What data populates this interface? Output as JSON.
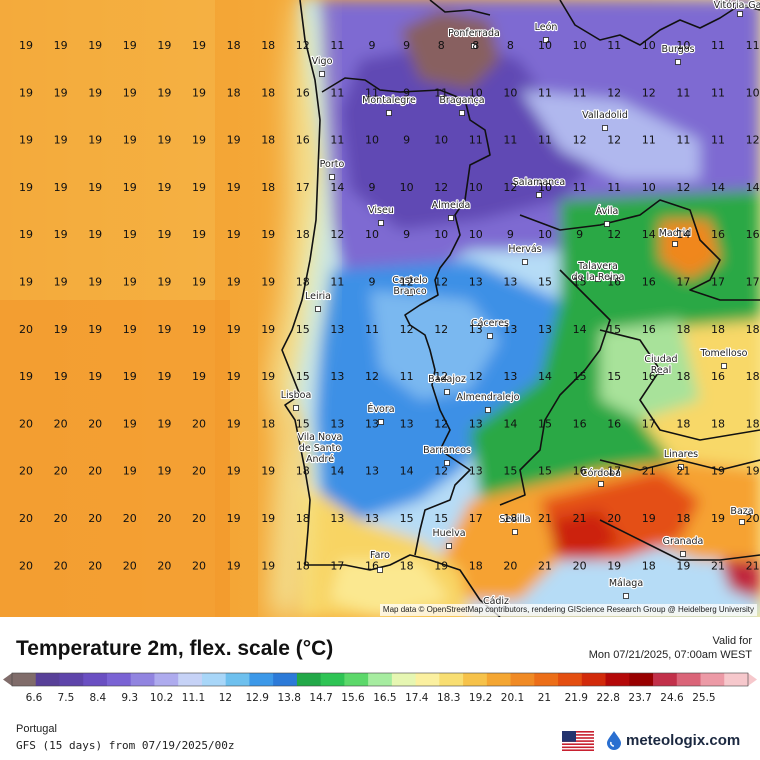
{
  "map": {
    "attribution": "Map data © OpenStreetMap contributors, rendering GIScience Research Group @ Heidelberg University",
    "grid_columns": 22,
    "grid_values": [
      [
        19,
        19,
        19,
        19,
        19,
        19,
        18,
        18,
        12,
        11,
        9,
        9,
        8,
        8,
        8,
        10,
        10,
        11,
        10,
        10,
        11,
        11
      ],
      [
        19,
        19,
        19,
        19,
        19,
        19,
        18,
        18,
        16,
        11,
        11,
        9,
        11,
        10,
        10,
        11,
        11,
        12,
        12,
        11,
        11,
        10
      ],
      [
        19,
        19,
        19,
        19,
        19,
        19,
        19,
        18,
        16,
        11,
        10,
        9,
        10,
        11,
        11,
        11,
        12,
        12,
        11,
        11,
        11,
        12
      ],
      [
        19,
        19,
        19,
        19,
        19,
        19,
        19,
        18,
        17,
        14,
        9,
        10,
        12,
        10,
        12,
        10,
        11,
        11,
        10,
        12,
        14,
        14
      ],
      [
        19,
        19,
        19,
        19,
        19,
        19,
        19,
        19,
        18,
        12,
        10,
        9,
        10,
        10,
        9,
        10,
        9,
        12,
        14,
        14,
        16,
        16
      ],
      [
        19,
        19,
        19,
        19,
        19,
        19,
        19,
        19,
        18,
        11,
        9,
        12,
        12,
        13,
        13,
        15,
        15,
        16,
        16,
        17,
        17,
        17
      ],
      [
        20,
        19,
        19,
        19,
        19,
        19,
        19,
        19,
        15,
        13,
        11,
        12,
        12,
        13,
        13,
        13,
        14,
        15,
        16,
        18,
        18,
        18
      ],
      [
        19,
        19,
        19,
        19,
        19,
        19,
        19,
        19,
        15,
        13,
        12,
        11,
        12,
        12,
        13,
        14,
        15,
        15,
        16,
        18,
        16,
        18
      ],
      [
        20,
        20,
        20,
        19,
        19,
        20,
        19,
        18,
        15,
        13,
        13,
        13,
        12,
        13,
        14,
        15,
        16,
        16,
        17,
        18,
        18,
        18
      ],
      [
        20,
        20,
        20,
        19,
        19,
        20,
        19,
        19,
        18,
        14,
        13,
        14,
        12,
        13,
        15,
        15,
        16,
        17,
        21,
        21,
        19,
        19
      ],
      [
        20,
        20,
        20,
        20,
        20,
        20,
        19,
        19,
        18,
        13,
        13,
        15,
        15,
        17,
        18,
        21,
        21,
        20,
        19,
        18,
        19,
        20
      ],
      [
        20,
        20,
        20,
        20,
        20,
        20,
        19,
        19,
        18,
        17,
        16,
        18,
        19,
        18,
        20,
        21,
        20,
        19,
        18,
        19,
        21,
        21
      ]
    ],
    "cities": [
      {
        "name": "Vitória-Gas"
      },
      {
        "name": "Ponferrada"
      },
      {
        "name": "León"
      },
      {
        "name": "Burgos"
      },
      {
        "name": "Vigo"
      },
      {
        "name": "Montalegre"
      },
      {
        "name": "Bragança"
      },
      {
        "name": "Valladolid"
      },
      {
        "name": "Porto"
      },
      {
        "name": "Salamanca"
      },
      {
        "name": "Viseu"
      },
      {
        "name": "Almeida"
      },
      {
        "name": "Ávila"
      },
      {
        "name": "Madrid"
      },
      {
        "name": "Hervás"
      },
      {
        "name": "Talavera"
      },
      {
        "name": "de la Reina"
      },
      {
        "name": "Castelo"
      },
      {
        "name": "Branco"
      },
      {
        "name": "Leiria"
      },
      {
        "name": "Cáceres"
      },
      {
        "name": "Ciudad"
      },
      {
        "name": "Real"
      },
      {
        "name": "Tomelloso"
      },
      {
        "name": "Lisboa"
      },
      {
        "name": "Badajoz"
      },
      {
        "name": "Almendralejo"
      },
      {
        "name": "Évora"
      },
      {
        "name": "Vila Nova"
      },
      {
        "name": "de Santo"
      },
      {
        "name": "André"
      },
      {
        "name": "Barrancos"
      },
      {
        "name": "Linares"
      },
      {
        "name": "Córdoba"
      },
      {
        "name": "Baza"
      },
      {
        "name": "Sevilla"
      },
      {
        "name": "Huelva"
      },
      {
        "name": "Granada"
      },
      {
        "name": "Faro"
      },
      {
        "name": "Málaga"
      },
      {
        "name": "Cádiz"
      }
    ]
  },
  "footer": {
    "title": "Temperature 2m, flex. scale (°C)",
    "valid_label": "Valid for",
    "valid_date": "Mon 07/21/2025, 07:00am WEST",
    "region": "Portugal",
    "model": "GFS (15 days) from 07/19/2025/00z",
    "logo_text": "meteologix.com"
  },
  "legend": {
    "labels": [
      "6.6",
      "7.5",
      "8.4",
      "9.3",
      "10.2",
      "11.1",
      "12",
      "12.9",
      "13.8",
      "14.7",
      "15.6",
      "16.5",
      "17.4",
      "18.3",
      "19.2",
      "20.1",
      "21",
      "21.9",
      "22.8",
      "23.7",
      "24.6",
      "25.5"
    ],
    "colors": [
      "#806c6a",
      "#584098",
      "#5e44aa",
      "#6a4fc2",
      "#7a63d4",
      "#9184e0",
      "#aeabee",
      "#c6d2f6",
      "#a8d6f8",
      "#6ec0ee",
      "#3c98e8",
      "#2c7ad8",
      "#22a848",
      "#2ec454",
      "#5cd86a",
      "#a6eca0",
      "#e6f6b2",
      "#fbf0a0",
      "#f8de72",
      "#f6c24a",
      "#f4a632",
      "#f08a24",
      "#ec6e18",
      "#e44e10",
      "#d22a0a",
      "#b40808",
      "#980000",
      "#c2304a",
      "#da6478",
      "#ec9aa6",
      "#f6c8cc"
    ]
  },
  "colors": {
    "sea_warm": "#f39a2a",
    "sea_mild": "#f7c254",
    "coast_yellow": "#fbf09a",
    "cold_purple": "#5c44a8",
    "cool_blue": "#3c8ee4",
    "green": "#2aa844",
    "hot_red": "#e03a0e",
    "brand": "#1b2840"
  }
}
